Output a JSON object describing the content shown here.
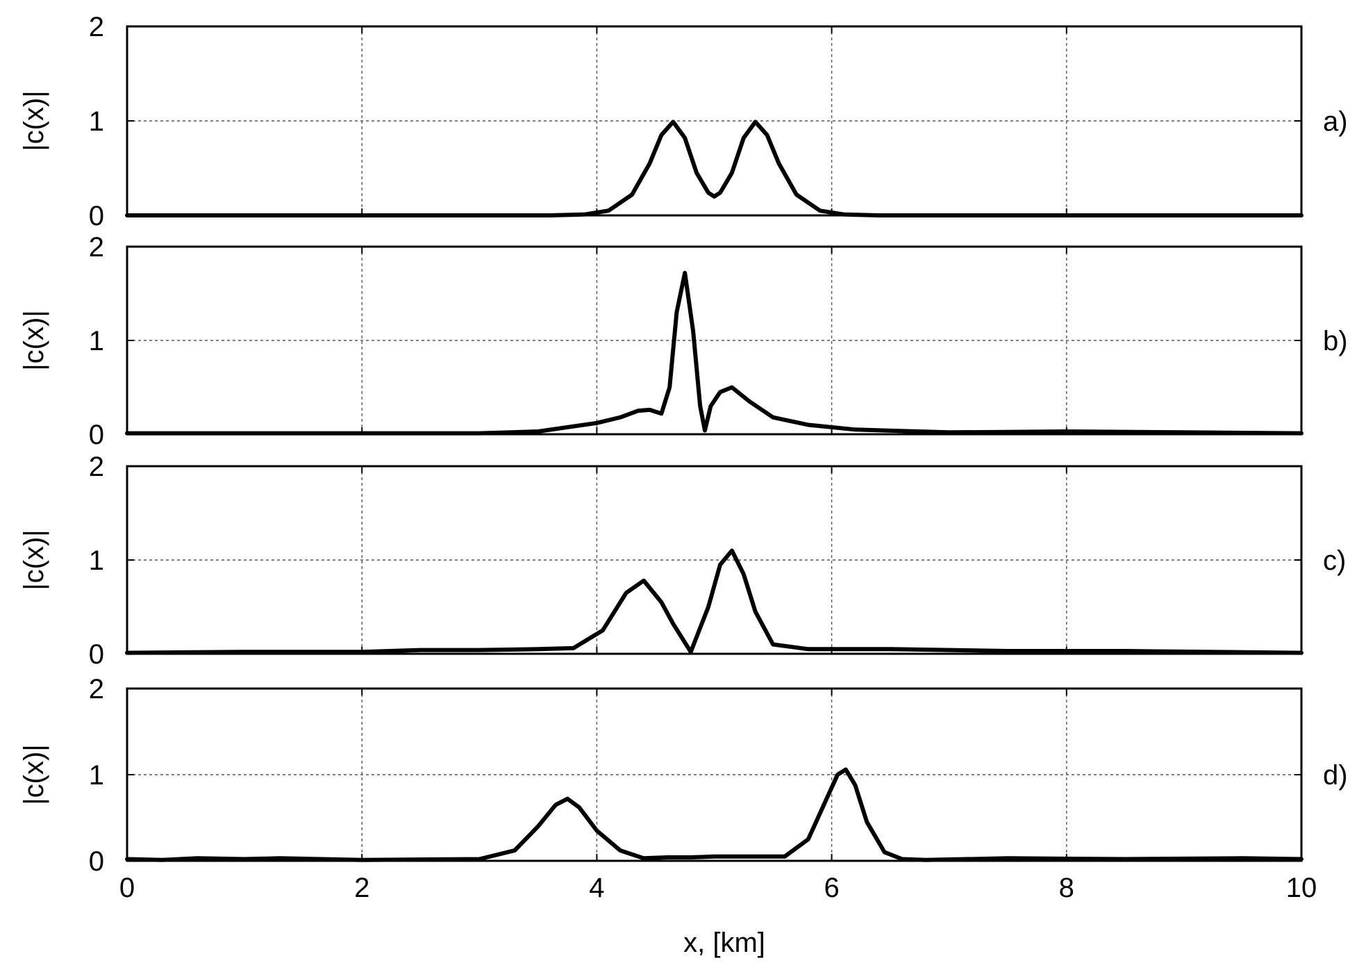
{
  "chart_data": {
    "type": "line",
    "shared_x": {
      "label": "x, [km]",
      "range": [
        0,
        10
      ],
      "ticks": [
        0,
        2,
        4,
        6,
        8,
        10
      ]
    },
    "y_ticks": [
      0,
      1,
      2
    ],
    "grid": true,
    "panels": [
      {
        "panel_label": "a)",
        "ylabel": "|c(x)|",
        "ylim": [
          0,
          2
        ],
        "series": [
          {
            "x": [
              0,
              3.6,
              3.9,
              4.1,
              4.3,
              4.45,
              4.55,
              4.65,
              4.75,
              4.85,
              4.95,
              5.0,
              5.05,
              5.15,
              5.25,
              5.35,
              5.45,
              5.55,
              5.7,
              5.9,
              6.1,
              6.4,
              10
            ],
            "y": [
              0,
              0,
              0.01,
              0.05,
              0.22,
              0.55,
              0.85,
              0.99,
              0.82,
              0.45,
              0.24,
              0.2,
              0.24,
              0.45,
              0.82,
              0.99,
              0.85,
              0.55,
              0.22,
              0.05,
              0.01,
              0,
              0
            ]
          }
        ]
      },
      {
        "panel_label": "b)",
        "ylabel": "|c(x)|",
        "ylim": [
          0,
          2
        ],
        "series": [
          {
            "x": [
              0,
              2,
              3,
              3.5,
              4.0,
              4.2,
              4.35,
              4.45,
              4.55,
              4.62,
              4.68,
              4.75,
              4.82,
              4.88,
              4.92,
              4.97,
              5.05,
              5.15,
              5.3,
              5.5,
              5.8,
              6.2,
              7.0,
              8.0,
              9.0,
              10
            ],
            "y": [
              0.01,
              0.01,
              0.01,
              0.03,
              0.12,
              0.18,
              0.25,
              0.26,
              0.22,
              0.5,
              1.3,
              1.72,
              1.1,
              0.3,
              0.04,
              0.3,
              0.45,
              0.5,
              0.35,
              0.18,
              0.1,
              0.05,
              0.02,
              0.03,
              0.02,
              0.01
            ]
          }
        ]
      },
      {
        "panel_label": "c)",
        "ylabel": "|c(x)|",
        "ylim": [
          0,
          2
        ],
        "series": [
          {
            "x": [
              0,
              1,
              2,
              2.5,
              3.0,
              3.5,
              3.8,
              4.05,
              4.25,
              4.4,
              4.55,
              4.65,
              4.8,
              4.95,
              5.05,
              5.15,
              5.25,
              5.35,
              5.5,
              5.8,
              6.5,
              7.5,
              8.5,
              10
            ],
            "y": [
              0.01,
              0.02,
              0.02,
              0.04,
              0.04,
              0.05,
              0.06,
              0.25,
              0.65,
              0.78,
              0.55,
              0.32,
              0.02,
              0.5,
              0.95,
              1.1,
              0.85,
              0.45,
              0.1,
              0.05,
              0.05,
              0.03,
              0.03,
              0.01
            ]
          }
        ]
      },
      {
        "panel_label": "d)",
        "ylabel": "|c(x)|",
        "ylim": [
          0,
          2
        ],
        "series": [
          {
            "x": [
              0,
              0.3,
              0.6,
              1.0,
              1.3,
              2.0,
              3.0,
              3.3,
              3.5,
              3.65,
              3.75,
              3.85,
              4.0,
              4.2,
              4.4,
              4.6,
              4.8,
              5.0,
              5.3,
              5.6,
              5.8,
              5.95,
              6.05,
              6.12,
              6.2,
              6.3,
              6.45,
              6.6,
              6.8,
              7.5,
              8.5,
              9.5,
              10
            ],
            "y": [
              0.02,
              0.01,
              0.03,
              0.02,
              0.03,
              0.01,
              0.02,
              0.12,
              0.4,
              0.65,
              0.72,
              0.62,
              0.35,
              0.12,
              0.03,
              0.04,
              0.04,
              0.05,
              0.05,
              0.05,
              0.25,
              0.7,
              1.0,
              1.06,
              0.88,
              0.45,
              0.1,
              0.02,
              0.01,
              0.03,
              0.02,
              0.03,
              0.02
            ]
          }
        ]
      }
    ]
  }
}
